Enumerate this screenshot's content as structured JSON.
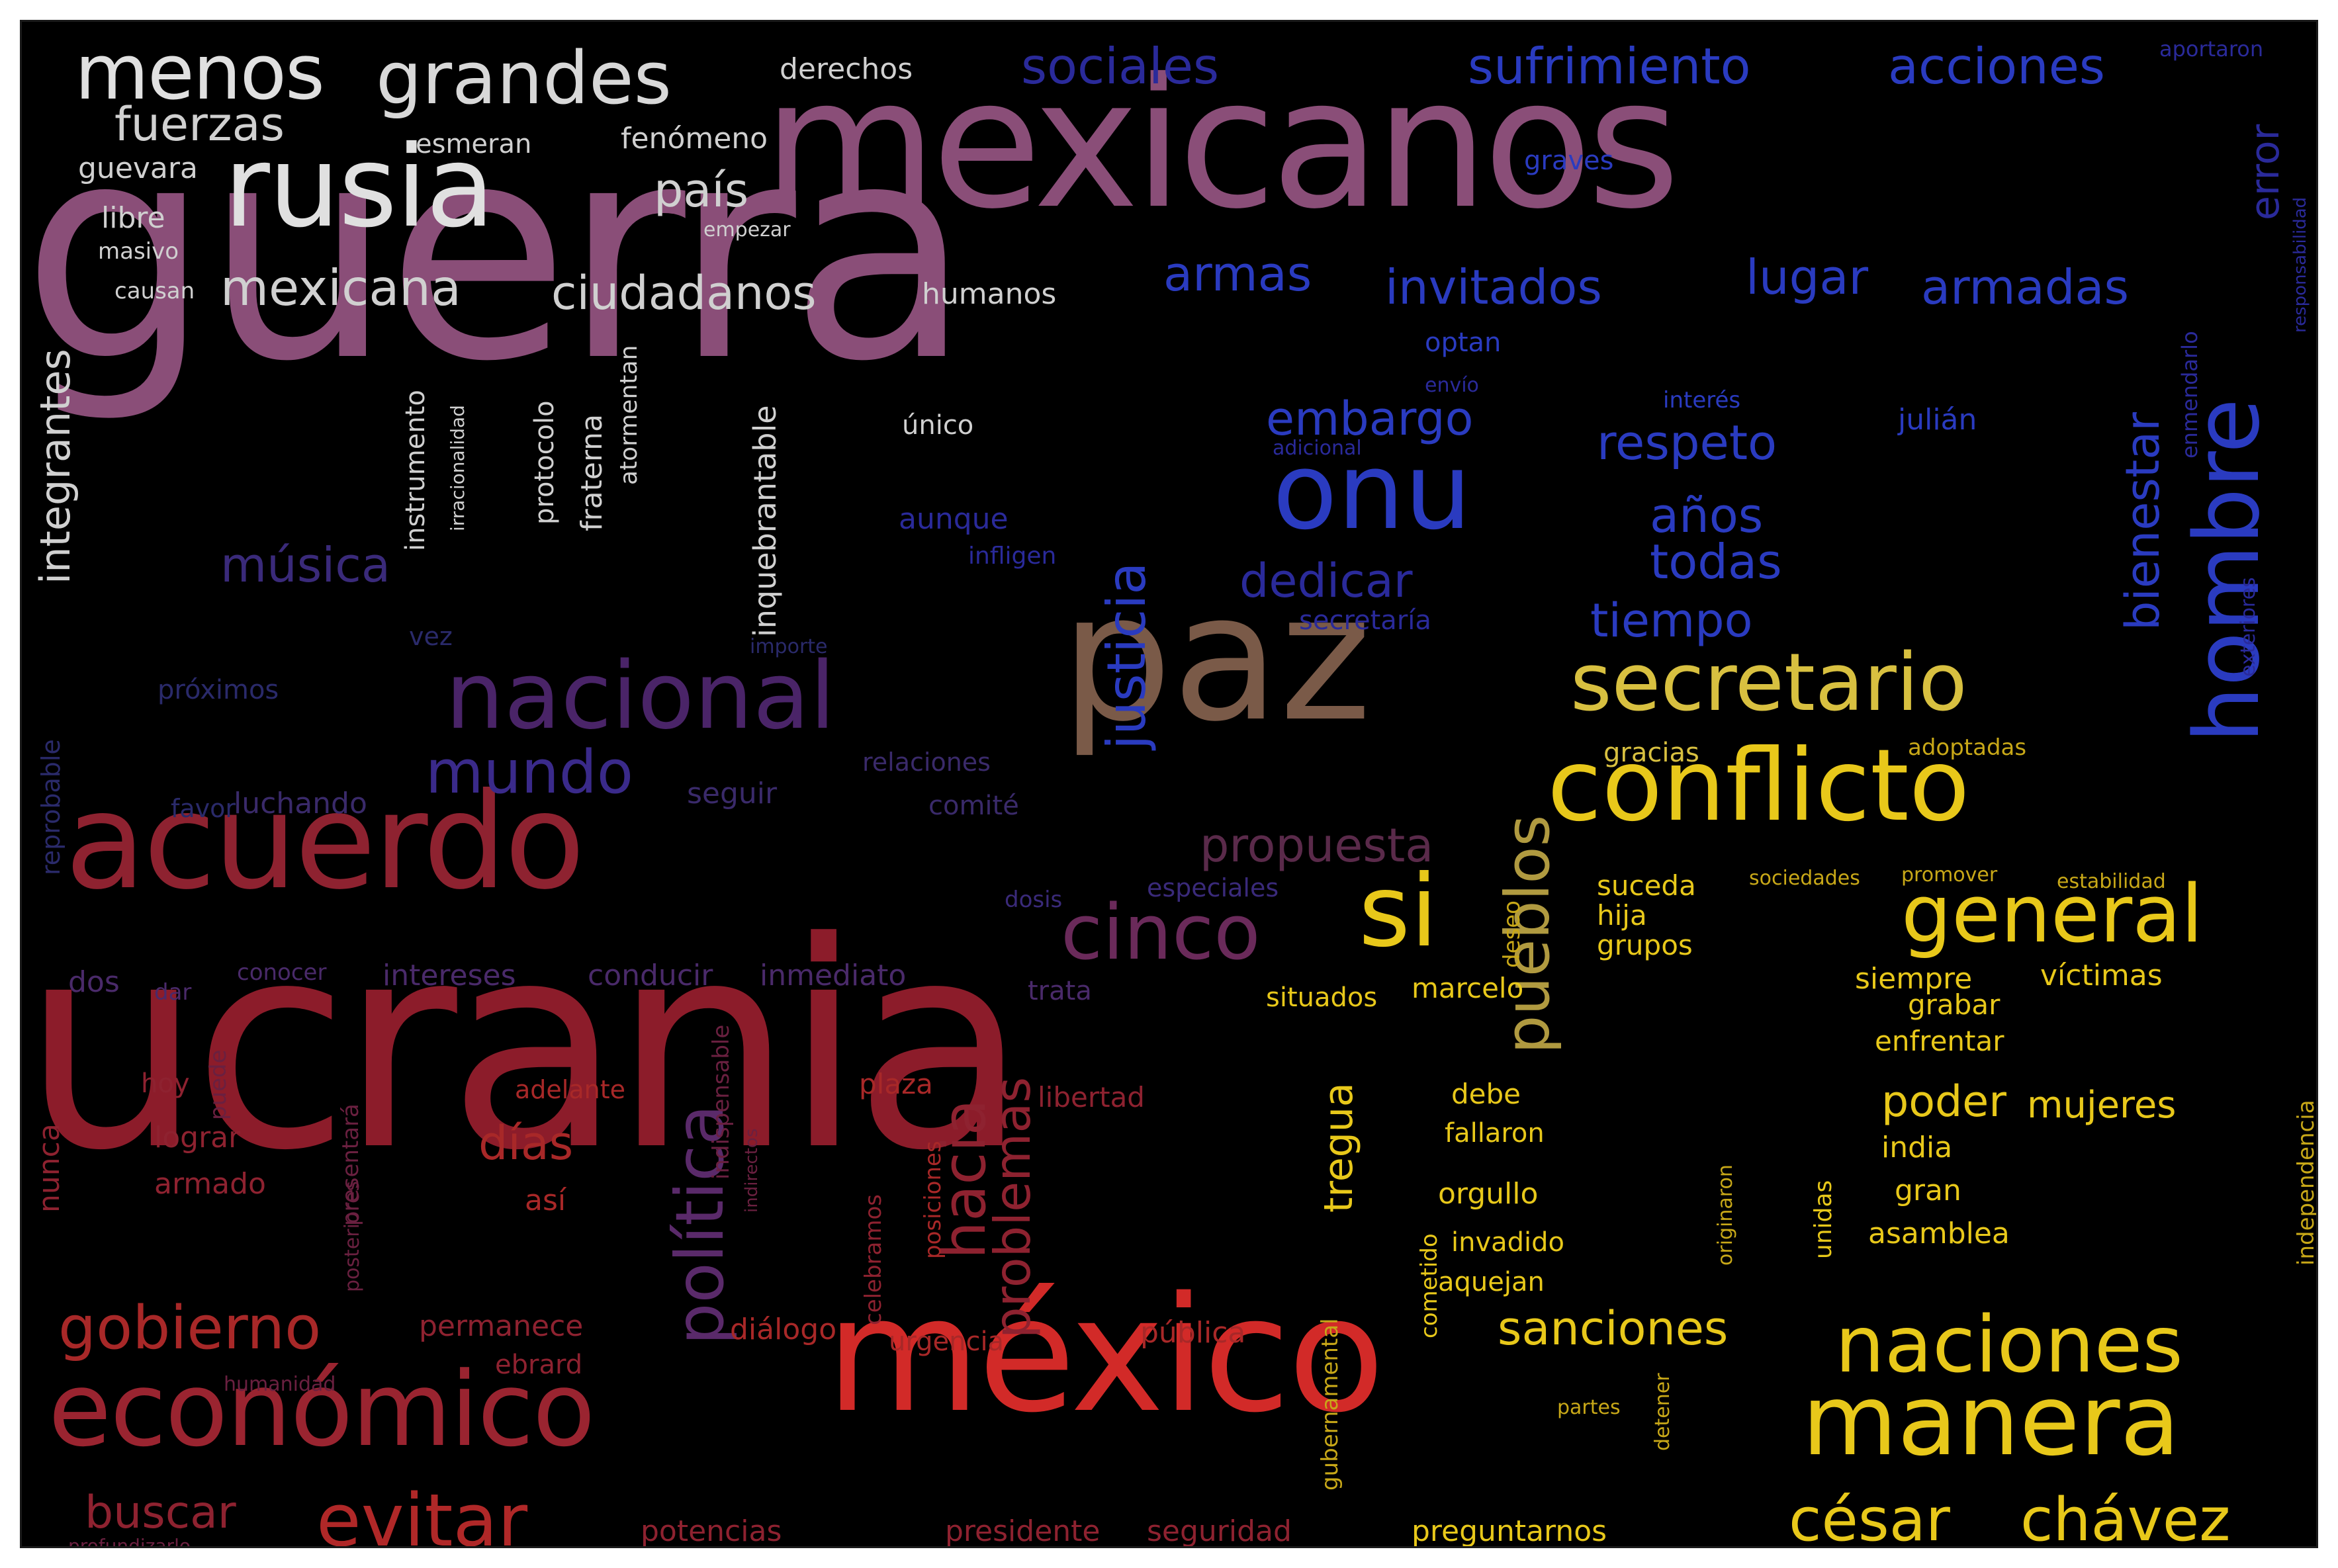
{
  "colors": {
    "background": "#000000",
    "frame": "#ffffff",
    "mauve": "#8a4e78",
    "crimson": "#8c1c2a",
    "red": "#d02424",
    "yellow": "#e6c21a",
    "blue": "#2a3bc0",
    "purple": "#4a2468",
    "brown": "#7a5a48",
    "white": "#e8e8e8"
  },
  "words": [
    {
      "text": "guerra",
      "color": "#8a4e78"
    },
    {
      "text": "ucrania",
      "color": "#8c1c2a"
    },
    {
      "text": "mexicanos",
      "color": "#8a4e78"
    },
    {
      "text": "méxico",
      "color": "#d22a28"
    },
    {
      "text": "paz",
      "color": "#7a5a48"
    },
    {
      "text": "acuerdo",
      "color": "#8e2230"
    },
    {
      "text": "rusia",
      "color": "#e0e0e0"
    },
    {
      "text": "conflicto",
      "color": "#e8c81a"
    },
    {
      "text": "económico",
      "color": "#9a2430"
    },
    {
      "text": "manera",
      "color": "#e8c81a"
    },
    {
      "text": "nacional",
      "color": "#4a2468"
    },
    {
      "text": "onu",
      "color": "#2a3bc0"
    },
    {
      "text": "hombre",
      "color": "#2a3bc0"
    },
    {
      "text": "secretario",
      "color": "#d8c040"
    },
    {
      "text": "si",
      "color": "#e8c81a"
    },
    {
      "text": "general",
      "color": "#e8c81a"
    },
    {
      "text": "naciones",
      "color": "#e8c81a"
    },
    {
      "text": "cinco",
      "color": "#6a2a5a"
    },
    {
      "text": "menos",
      "color": "#e0e0e0"
    },
    {
      "text": "grandes",
      "color": "#d8d8d8"
    },
    {
      "text": "política",
      "color": "#5a2a6a"
    },
    {
      "text": "pueblos",
      "color": "#b09a40"
    },
    {
      "text": "césar",
      "color": "#e8c81a"
    },
    {
      "text": "chávez",
      "color": "#e8c81a"
    },
    {
      "text": "evitar",
      "color": "#b02828"
    },
    {
      "text": "gobierno",
      "color": "#a82828"
    },
    {
      "text": "mundo",
      "color": "#3a2a8a"
    },
    {
      "text": "justicia",
      "color": "#2a3bc0"
    },
    {
      "text": "mexicana",
      "color": "#d0d0d0"
    },
    {
      "text": "ciudadanos",
      "color": "#d0d0d0"
    },
    {
      "text": "sociales",
      "color": "#2a2a9a"
    },
    {
      "text": "sufrimiento",
      "color": "#2a3bc0"
    },
    {
      "text": "acciones",
      "color": "#2a3bc0"
    },
    {
      "text": "fuerzas",
      "color": "#d0d0d0"
    },
    {
      "text": "país",
      "color": "#d0d0d0"
    },
    {
      "text": "invitados",
      "color": "#2a3bc0"
    },
    {
      "text": "lugar",
      "color": "#2a3bc0"
    },
    {
      "text": "armadas",
      "color": "#2a3bc0"
    },
    {
      "text": "armas",
      "color": "#2a3bc0"
    },
    {
      "text": "respeto",
      "color": "#2a3bc0"
    },
    {
      "text": "embargo",
      "color": "#2a3bc0"
    },
    {
      "text": "años",
      "color": "#2a3bc0"
    },
    {
      "text": "todas",
      "color": "#2a3bc0"
    },
    {
      "text": "dedicar",
      "color": "#2a2a9a"
    },
    {
      "text": "tiempo",
      "color": "#2a3bc0"
    },
    {
      "text": "bienestar",
      "color": "#2a3bc0"
    },
    {
      "text": "error",
      "color": "#2a2a9a"
    },
    {
      "text": "música",
      "color": "#3a2a7a"
    },
    {
      "text": "integrantes",
      "color": "#d0d0d0"
    },
    {
      "text": "propuesta",
      "color": "#5a2a4a"
    },
    {
      "text": "hacia",
      "color": "#8e2230"
    },
    {
      "text": "problemas",
      "color": "#8e2230"
    },
    {
      "text": "días",
      "color": "#a82828"
    },
    {
      "text": "tregua",
      "color": "#e8c81a"
    },
    {
      "text": "poder",
      "color": "#e8c81a"
    },
    {
      "text": "mujeres",
      "color": "#e8c81a"
    },
    {
      "text": "sanciones",
      "color": "#e8c81a"
    },
    {
      "text": "buscar",
      "color": "#8e2230"
    },
    {
      "text": "potencias",
      "color": "#8e2230"
    },
    {
      "text": "presidente",
      "color": "#8e2230"
    },
    {
      "text": "seguridad",
      "color": "#8e2230"
    },
    {
      "text": "preguntarnos",
      "color": "#e8c81a"
    },
    {
      "text": "derechos",
      "color": "#d0d0d0"
    },
    {
      "text": "guevara",
      "color": "#d0d0d0"
    },
    {
      "text": "libre",
      "color": "#d0d0d0"
    },
    {
      "text": "masivo",
      "color": "#d0d0d0"
    },
    {
      "text": "causan",
      "color": "#d0d0d0"
    },
    {
      "text": "humanos",
      "color": "#d0d0d0"
    },
    {
      "text": "fenómeno",
      "color": "#d0d0d0"
    },
    {
      "text": "esmeran",
      "color": "#d0d0d0"
    },
    {
      "text": "empezar",
      "color": "#d0d0d0"
    },
    {
      "text": "único",
      "color": "#d0d0d0"
    },
    {
      "text": "inquebrantable",
      "color": "#d0d0d0"
    },
    {
      "text": "instrumento",
      "color": "#d0d0d0"
    },
    {
      "text": "protocolo",
      "color": "#d0d0d0"
    },
    {
      "text": "fraterna",
      "color": "#d0d0d0"
    },
    {
      "text": "atormentan",
      "color": "#d0d0d0"
    },
    {
      "text": "irracionalidad",
      "color": "#d0d0d0"
    },
    {
      "text": "julián",
      "color": "#2a3bc0"
    },
    {
      "text": "interés",
      "color": "#2a3bc0"
    },
    {
      "text": "graves",
      "color": "#2a3bc0"
    },
    {
      "text": "optan",
      "color": "#2a3bc0"
    },
    {
      "text": "envío",
      "color": "#2a2a9a"
    },
    {
      "text": "adicional",
      "color": "#2a2a9a"
    },
    {
      "text": "secretaría",
      "color": "#2a2a9a"
    },
    {
      "text": "infligen",
      "color": "#2a2a9a"
    },
    {
      "text": "aunque",
      "color": "#2a2a9a"
    },
    {
      "text": "enmendarlo",
      "color": "#2a2a9a"
    },
    {
      "text": "próximos",
      "color": "#2a2a6a"
    },
    {
      "text": "luchando",
      "color": "#3a2a6a"
    },
    {
      "text": "relaciones",
      "color": "#3a2a6a"
    },
    {
      "text": "seguir",
      "color": "#3a2a6a"
    },
    {
      "text": "comité",
      "color": "#3a2a6a"
    },
    {
      "text": "vez",
      "color": "#2a2a6a"
    },
    {
      "text": "importe",
      "color": "#2a2a6a"
    },
    {
      "text": "favor",
      "color": "#2a2a6a"
    },
    {
      "text": "reprobable",
      "color": "#2a2a6a"
    },
    {
      "text": "dos",
      "color": "#4a2a6a"
    },
    {
      "text": "dar",
      "color": "#4a2a6a"
    },
    {
      "text": "conocer",
      "color": "#4a2a6a"
    },
    {
      "text": "intereses",
      "color": "#4a2a6a"
    },
    {
      "text": "conducir",
      "color": "#4a2a6a"
    },
    {
      "text": "inmediato",
      "color": "#4a2a6a"
    },
    {
      "text": "trata",
      "color": "#4a2a6a"
    },
    {
      "text": "especiales",
      "color": "#3a2a7a"
    },
    {
      "text": "dosis",
      "color": "#3a2a7a"
    },
    {
      "text": "puede",
      "color": "#6a2040"
    },
    {
      "text": "hoy",
      "color": "#8e2230"
    },
    {
      "text": "lograr",
      "color": "#8e2230"
    },
    {
      "text": "armado",
      "color": "#8e2230"
    },
    {
      "text": "nunca",
      "color": "#8e2230"
    },
    {
      "text": "adelante",
      "color": "#a82828"
    },
    {
      "text": "así",
      "color": "#a82828"
    },
    {
      "text": "presentará",
      "color": "#6a2040"
    },
    {
      "text": "posteriores",
      "color": "#6a2040"
    },
    {
      "text": "indispensable",
      "color": "#6a2040"
    },
    {
      "text": "indirectos",
      "color": "#6a2040"
    },
    {
      "text": "plaza",
      "color": "#a82828"
    },
    {
      "text": "posiciones",
      "color": "#a82828"
    },
    {
      "text": "celebramos",
      "color": "#8e2230"
    },
    {
      "text": "libertad",
      "color": "#8e2230"
    },
    {
      "text": "diálogo",
      "color": "#a82828"
    },
    {
      "text": "urgencia",
      "color": "#a82828"
    },
    {
      "text": "pública",
      "color": "#a82828"
    },
    {
      "text": "permanece",
      "color": "#8e2230"
    },
    {
      "text": "ebrard",
      "color": "#8e2230"
    },
    {
      "text": "humanidad",
      "color": "#6a2040"
    },
    {
      "text": "profundizarlo",
      "color": "#6a2040"
    },
    {
      "text": "gubernamental",
      "color": "#c8a818"
    },
    {
      "text": "suceda",
      "color": "#e8c81a"
    },
    {
      "text": "hija",
      "color": "#e8c81a"
    },
    {
      "text": "grupos",
      "color": "#e8c81a"
    },
    {
      "text": "deseo",
      "color": "#c8a818"
    },
    {
      "text": "gracias",
      "color": "#d8c040"
    },
    {
      "text": "adoptadas",
      "color": "#c8a818"
    },
    {
      "text": "sociedades",
      "color": "#c8a818"
    },
    {
      "text": "promover",
      "color": "#c8a818"
    },
    {
      "text": "estabilidad",
      "color": "#c8a818"
    },
    {
      "text": "siempre",
      "color": "#e8c81a"
    },
    {
      "text": "víctimas",
      "color": "#e8c81a"
    },
    {
      "text": "grabar",
      "color": "#e8c81a"
    },
    {
      "text": "enfrentar",
      "color": "#e8c81a"
    },
    {
      "text": "situados",
      "color": "#e8c81a"
    },
    {
      "text": "marcelo",
      "color": "#e8c81a"
    },
    {
      "text": "debe",
      "color": "#e8c81a"
    },
    {
      "text": "fallaron",
      "color": "#e8c81a"
    },
    {
      "text": "orgullo",
      "color": "#e8c81a"
    },
    {
      "text": "invadido",
      "color": "#e8c81a"
    },
    {
      "text": "aquejan",
      "color": "#e8c81a"
    },
    {
      "text": "india",
      "color": "#e8c81a"
    },
    {
      "text": "gran",
      "color": "#e8c81a"
    },
    {
      "text": "asamblea",
      "color": "#e8c81a"
    },
    {
      "text": "unidas",
      "color": "#e8c81a"
    },
    {
      "text": "originaron",
      "color": "#c8a818"
    },
    {
      "text": "independencia",
      "color": "#c8a818"
    },
    {
      "text": "cometido",
      "color": "#e8c81a"
    },
    {
      "text": "detener",
      "color": "#c8a818"
    },
    {
      "text": "partes",
      "color": "#c8a818"
    },
    {
      "text": "responsabilidad",
      "color": "#2a2a9a"
    },
    {
      "text": "exteriores",
      "color": "#2a2a9a"
    },
    {
      "text": "aportaron",
      "color": "#2a2a9a"
    }
  ]
}
